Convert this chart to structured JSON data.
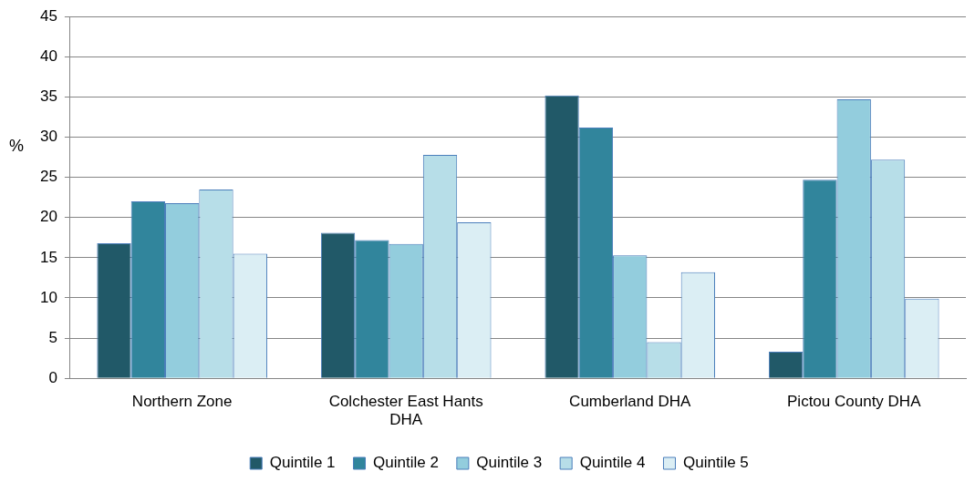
{
  "chart_data": {
    "type": "bar",
    "ylabel": "%",
    "categories": [
      "Northern Zone",
      "Colchester East Hants DHA",
      "Cumberland DHA",
      "Pictou County DHA"
    ],
    "series": [
      {
        "name": "Quintile 1",
        "color": "#215968",
        "values": [
          16.8,
          18.1,
          35.2,
          3.3
        ]
      },
      {
        "name": "Quintile 2",
        "color": "#31859c",
        "values": [
          22.0,
          17.2,
          31.2,
          24.7
        ]
      },
      {
        "name": "Quintile 3",
        "color": "#93cddd",
        "values": [
          21.8,
          16.7,
          15.3,
          34.7
        ]
      },
      {
        "name": "Quintile 4",
        "color": "#b7dee8",
        "values": [
          23.5,
          27.8,
          4.5,
          27.2
        ]
      },
      {
        "name": "Quintile 5",
        "color": "#dbeef4",
        "values": [
          15.5,
          19.4,
          13.2,
          9.9
        ]
      }
    ],
    "ylim": [
      0,
      45
    ],
    "yticks": [
      0,
      5,
      10,
      15,
      20,
      25,
      30,
      35,
      40,
      45
    ],
    "grid": "y",
    "legend": "bottom"
  }
}
